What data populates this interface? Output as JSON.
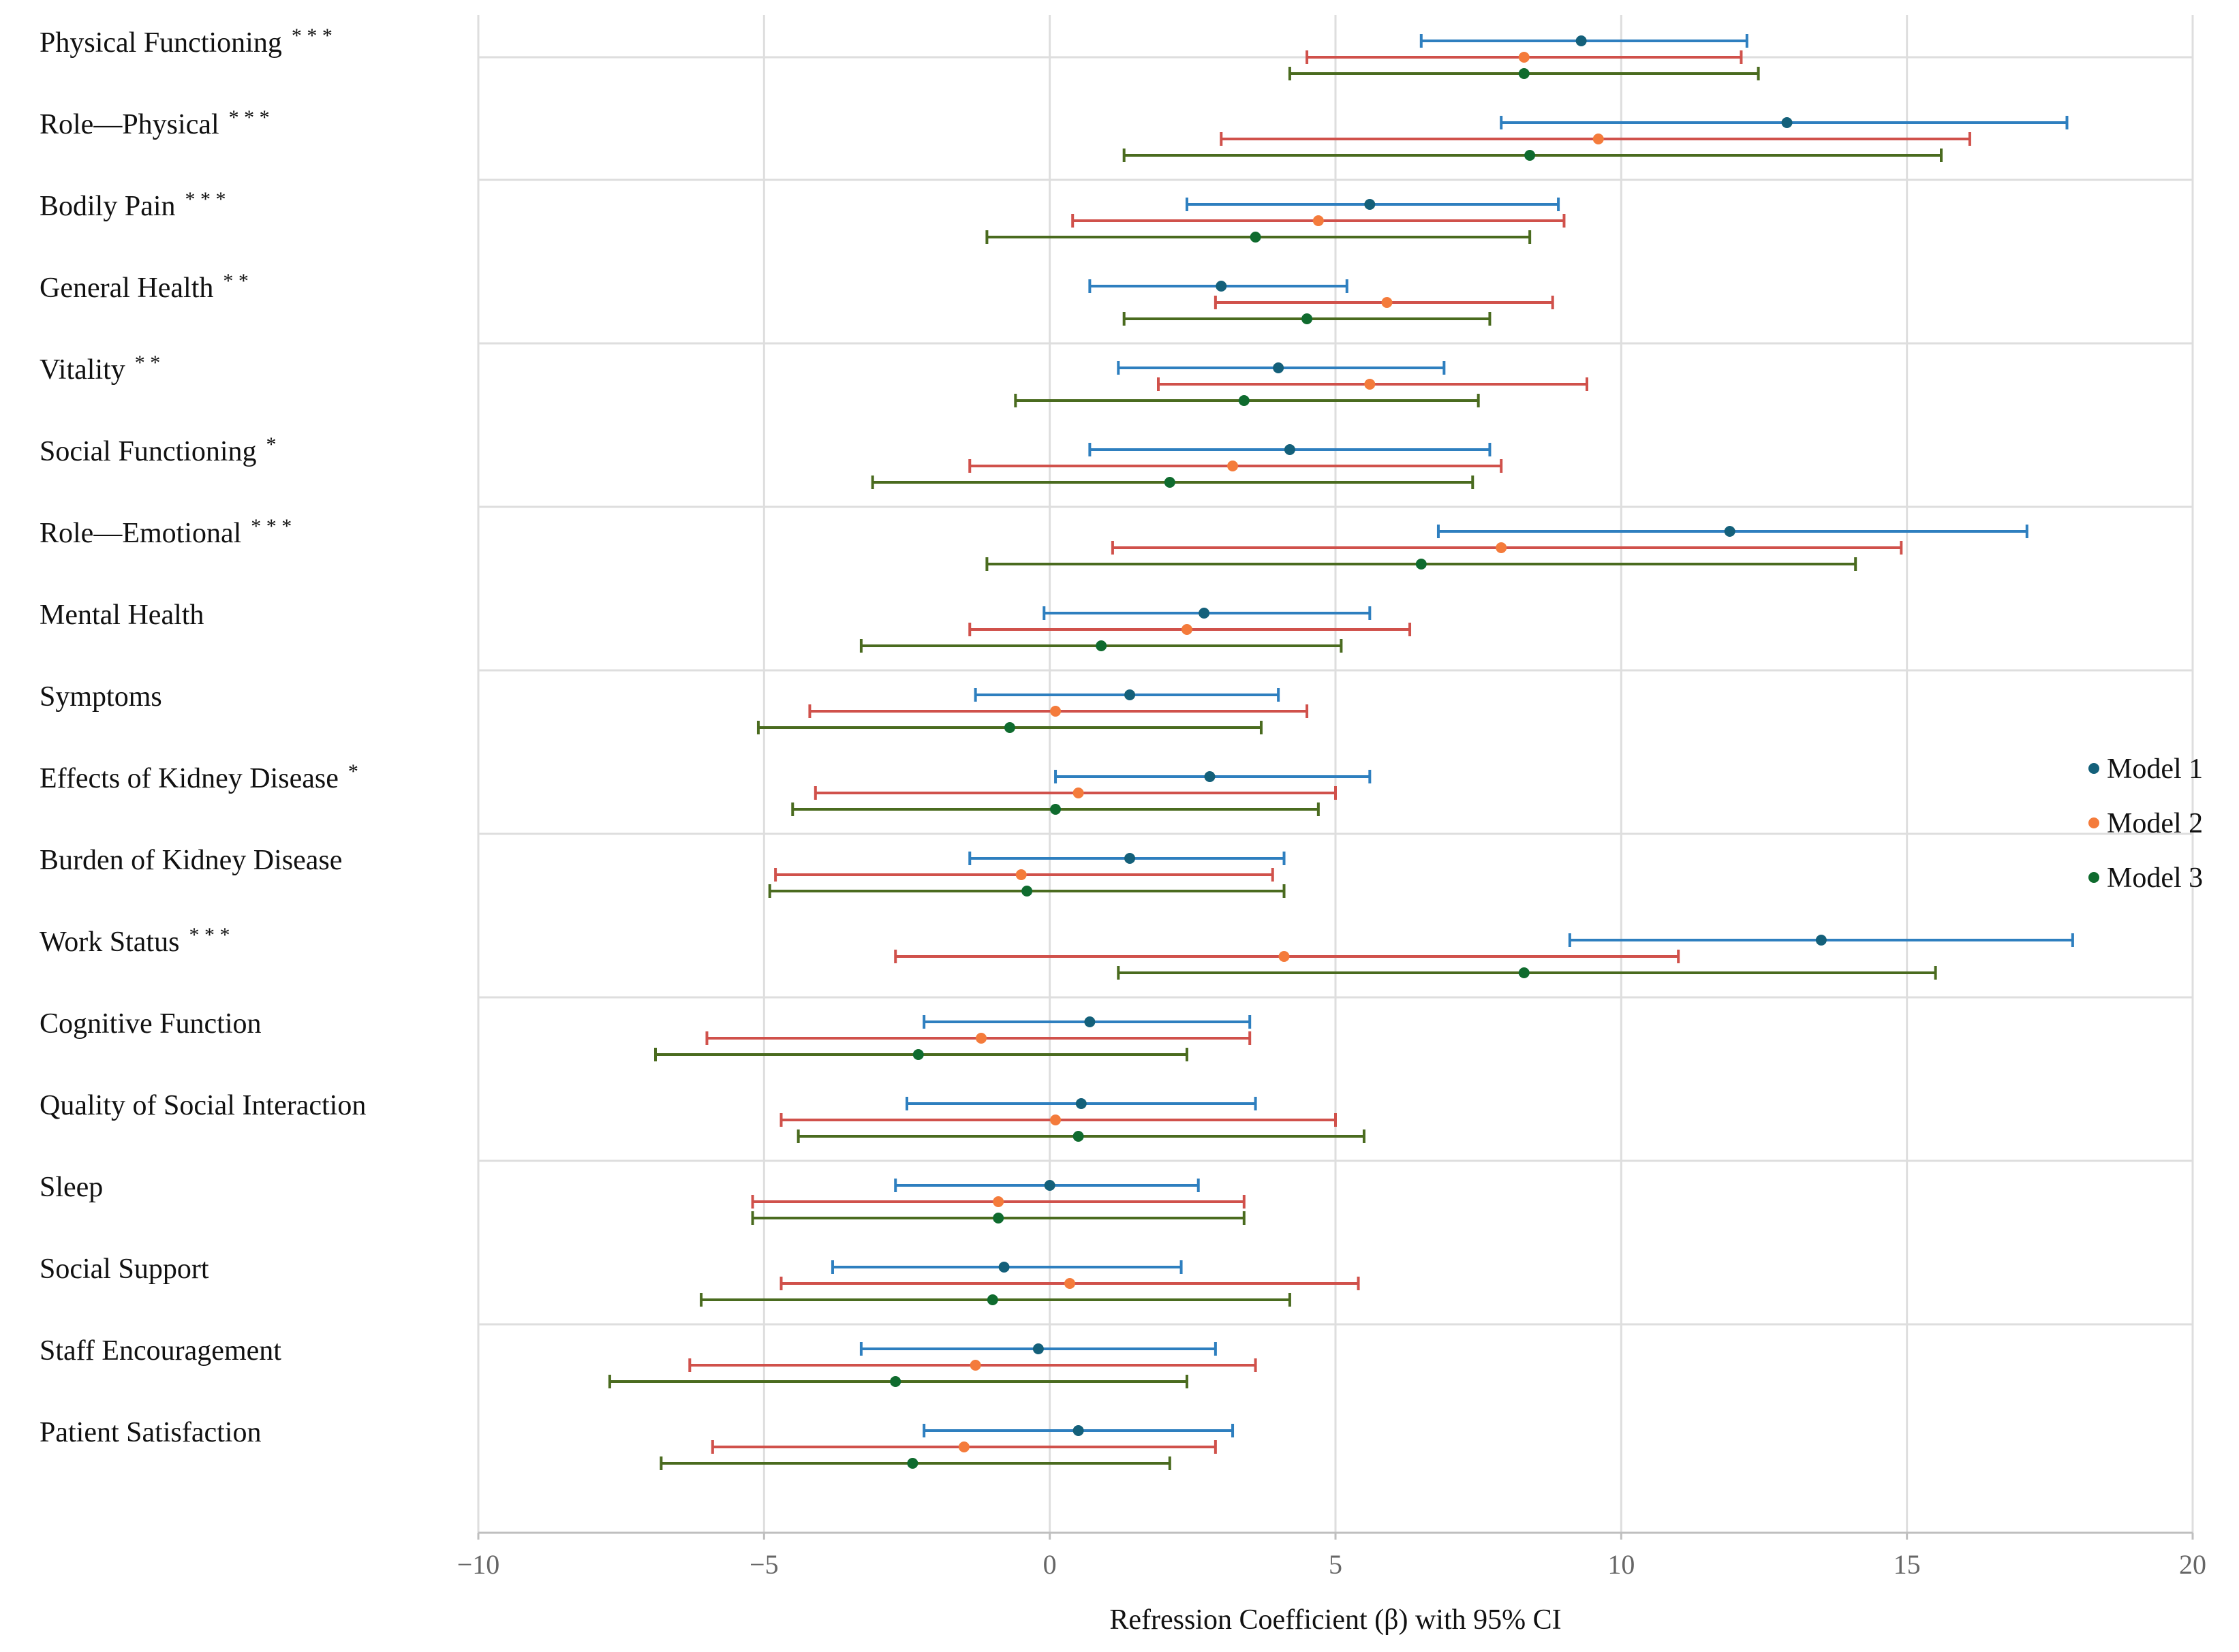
{
  "chart_data": {
    "type": "forest",
    "xlabel": "Refression Coefficient (β) with 95% CI",
    "xlim": [
      -10,
      20
    ],
    "xticks": [
      -10,
      -5,
      0,
      5,
      10,
      15,
      20
    ],
    "xtick_labels": [
      "−10",
      "−5",
      "0",
      "5",
      "10",
      "15",
      "20"
    ],
    "grid": true,
    "legend_position": "right",
    "categories": [
      {
        "label": "Physical Functioning",
        "sig": "***"
      },
      {
        "label": "Role—Physical",
        "sig": "***"
      },
      {
        "label": "Bodily Pain",
        "sig": "***"
      },
      {
        "label": "General Health",
        "sig": "**"
      },
      {
        "label": "Vitality",
        "sig": "**"
      },
      {
        "label": "Social Functioning",
        "sig": "*"
      },
      {
        "label": "Role—Emotional",
        "sig": "***"
      },
      {
        "label": "Mental Health",
        "sig": ""
      },
      {
        "label": "Symptoms",
        "sig": ""
      },
      {
        "label": "Effects of Kidney Disease",
        "sig": "*"
      },
      {
        "label": "Burden of Kidney Disease",
        "sig": ""
      },
      {
        "label": "Work Status",
        "sig": "***"
      },
      {
        "label": "Cognitive Function",
        "sig": ""
      },
      {
        "label": "Quality of Social Interaction",
        "sig": ""
      },
      {
        "label": "Sleep",
        "sig": ""
      },
      {
        "label": "Social Support",
        "sig": ""
      },
      {
        "label": "Staff Encouragement",
        "sig": ""
      },
      {
        "label": "Patient Satisfaction",
        "sig": ""
      }
    ],
    "series": [
      {
        "name": "Model 1",
        "dot_color": "#14607a",
        "line_color": "#2e7fbf",
        "estimates": [
          9.3,
          12.9,
          5.6,
          3.0,
          4.0,
          4.2,
          11.9,
          2.7,
          1.4,
          2.8,
          1.4,
          13.5,
          0.7,
          0.55,
          0.0,
          -0.8,
          -0.2,
          0.5
        ],
        "lower": [
          6.5,
          7.9,
          2.4,
          0.7,
          1.2,
          0.7,
          6.8,
          -0.1,
          -1.3,
          0.1,
          -1.4,
          9.1,
          -2.2,
          -2.5,
          -2.7,
          -3.8,
          -3.3,
          -2.2
        ],
        "upper": [
          12.2,
          17.8,
          8.9,
          5.2,
          6.9,
          7.7,
          17.1,
          5.6,
          4.0,
          5.6,
          4.1,
          17.9,
          3.5,
          3.6,
          2.6,
          2.3,
          2.9,
          3.2
        ]
      },
      {
        "name": "Model 2",
        "dot_color": "#f47b3b",
        "line_color": "#d0514b",
        "estimates": [
          8.3,
          9.6,
          4.7,
          5.9,
          5.6,
          3.2,
          7.9,
          2.4,
          0.1,
          0.5,
          -0.5,
          4.1,
          -1.2,
          0.1,
          -0.9,
          0.35,
          -1.3,
          -1.5
        ],
        "lower": [
          4.5,
          3.0,
          0.4,
          2.9,
          1.9,
          -1.4,
          1.1,
          -1.4,
          -4.2,
          -4.1,
          -4.8,
          -2.7,
          -6.0,
          -4.7,
          -5.2,
          -4.7,
          -6.3,
          -5.9
        ],
        "upper": [
          12.1,
          16.1,
          9.0,
          8.8,
          9.4,
          7.9,
          14.9,
          6.3,
          4.5,
          5.0,
          3.9,
          11.0,
          3.5,
          5.0,
          3.4,
          5.4,
          3.6,
          2.9
        ]
      },
      {
        "name": "Model 3",
        "dot_color": "#0f6b2e",
        "line_color": "#4a6b1f",
        "estimates": [
          8.3,
          8.4,
          3.6,
          4.5,
          3.4,
          2.1,
          6.5,
          0.9,
          -0.7,
          0.1,
          -0.4,
          8.3,
          -2.3,
          0.5,
          -0.9,
          -1.0,
          -2.7,
          -2.4
        ],
        "lower": [
          4.2,
          1.3,
          -1.1,
          1.3,
          -0.6,
          -3.1,
          -1.1,
          -3.3,
          -5.1,
          -4.5,
          -4.9,
          1.2,
          -6.9,
          -4.4,
          -5.2,
          -6.1,
          -7.7,
          -6.8
        ],
        "upper": [
          12.4,
          15.6,
          8.4,
          7.7,
          7.5,
          7.4,
          14.1,
          5.1,
          3.7,
          4.7,
          4.1,
          15.5,
          2.4,
          5.5,
          3.4,
          4.2,
          2.4,
          2.1
        ]
      }
    ]
  }
}
